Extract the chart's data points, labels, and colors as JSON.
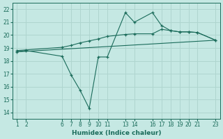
{
  "xlabel": "Humidex (Indice chaleur)",
  "bg_color": "#c5e8e3",
  "grid_color": "#afd5cf",
  "line_color": "#1a6b5a",
  "ylim": [
    13.5,
    22.5
  ],
  "xlim": [
    0.5,
    23.5
  ],
  "yticks": [
    14,
    15,
    16,
    17,
    18,
    19,
    20,
    21,
    22
  ],
  "xtick_positions": [
    1,
    2,
    6,
    7,
    8,
    9,
    10,
    11,
    13,
    14,
    16,
    17,
    18,
    19,
    20,
    21,
    23
  ],
  "xtick_labels": [
    "1",
    "2",
    "6",
    "7",
    "8",
    "9",
    "10",
    "11",
    "13",
    "14",
    "16",
    "17",
    "18",
    "19",
    "20",
    "21",
    "23"
  ],
  "line1_x": [
    1,
    2,
    6,
    7,
    8,
    9,
    10,
    11,
    13,
    14,
    16,
    17,
    18,
    19,
    20,
    21,
    23
  ],
  "line1_y": [
    18.8,
    18.85,
    19.05,
    19.2,
    19.4,
    19.55,
    19.7,
    19.9,
    20.05,
    20.1,
    20.1,
    20.45,
    20.35,
    20.25,
    20.25,
    20.2,
    19.6
  ],
  "line2_x": [
    1,
    2,
    6,
    7,
    8,
    9,
    10,
    11,
    13,
    14,
    16,
    17,
    18,
    19,
    20,
    21,
    23
  ],
  "line2_y": [
    18.7,
    18.8,
    18.35,
    16.9,
    15.7,
    14.3,
    18.3,
    18.3,
    21.75,
    21.0,
    21.75,
    20.75,
    20.35,
    20.25,
    20.25,
    20.2,
    19.6
  ],
  "line3_x": [
    1,
    23
  ],
  "line3_y": [
    18.7,
    19.6
  ]
}
